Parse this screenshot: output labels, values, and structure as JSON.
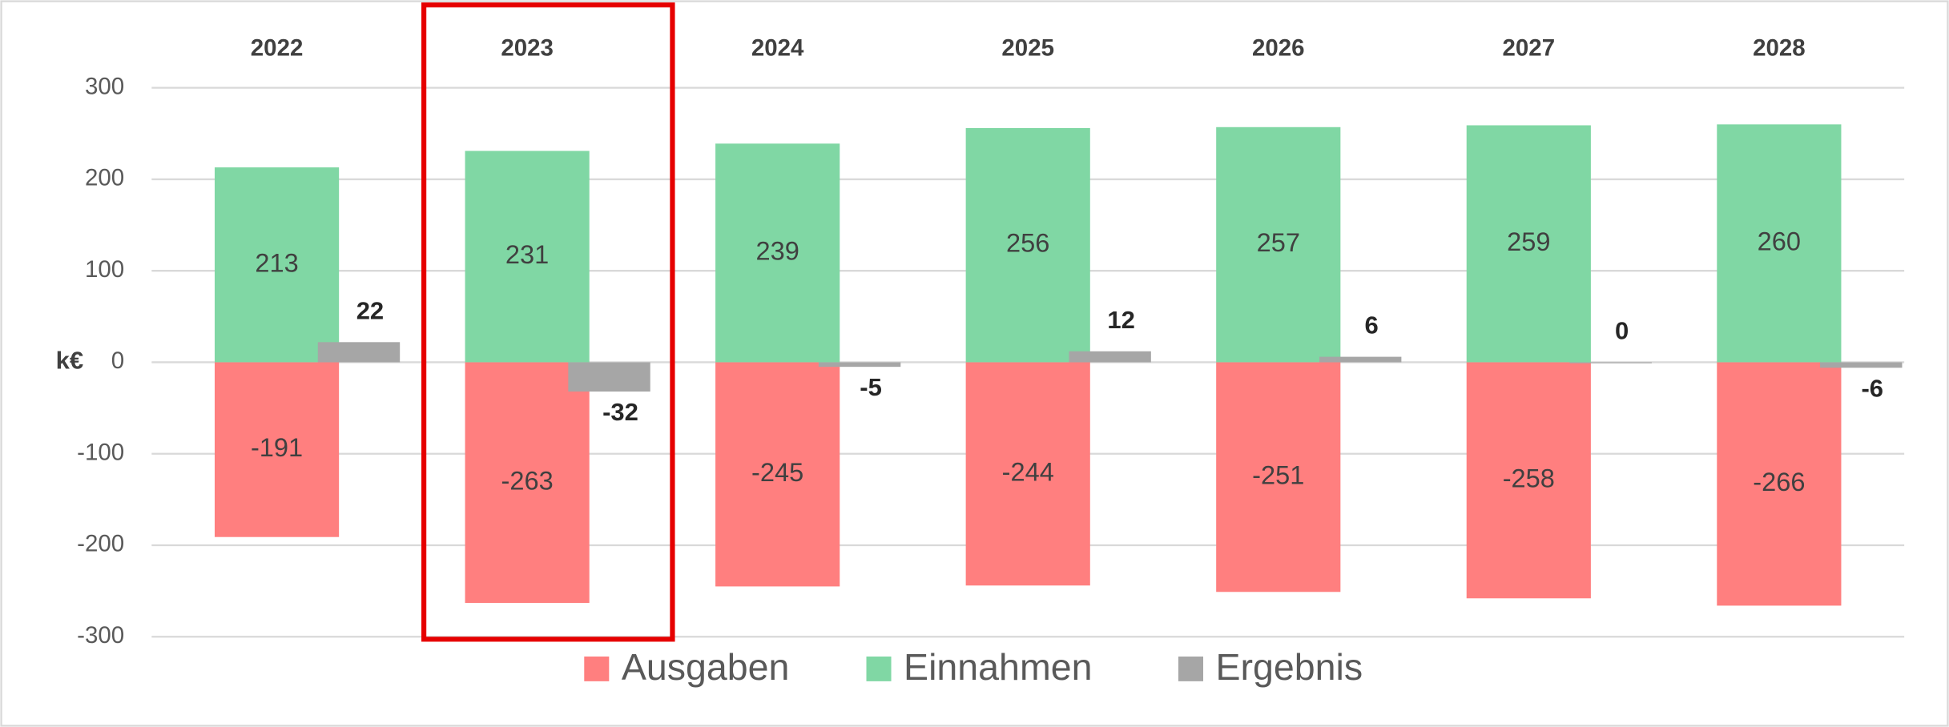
{
  "chart_data": {
    "type": "bar",
    "ylabel": "k€",
    "categories": [
      "2022",
      "2023",
      "2024",
      "2025",
      "2026",
      "2027",
      "2028"
    ],
    "series": [
      {
        "name": "Ausgaben",
        "color": "#ff7f7f",
        "values": [
          -191,
          -263,
          -245,
          -244,
          -251,
          -258,
          -266
        ]
      },
      {
        "name": "Einnahmen",
        "color": "#80d7a4",
        "values": [
          213,
          231,
          239,
          256,
          257,
          259,
          260
        ]
      },
      {
        "name": "Ergebnis",
        "color": "#a6a6a6",
        "values": [
          22,
          -32,
          -5,
          12,
          6,
          0,
          -6
        ]
      }
    ],
    "ylim": [
      -300,
      300
    ],
    "yticks": [
      -300,
      -200,
      -100,
      0,
      100,
      200,
      300
    ],
    "grid": true,
    "legend": "bottom"
  }
}
